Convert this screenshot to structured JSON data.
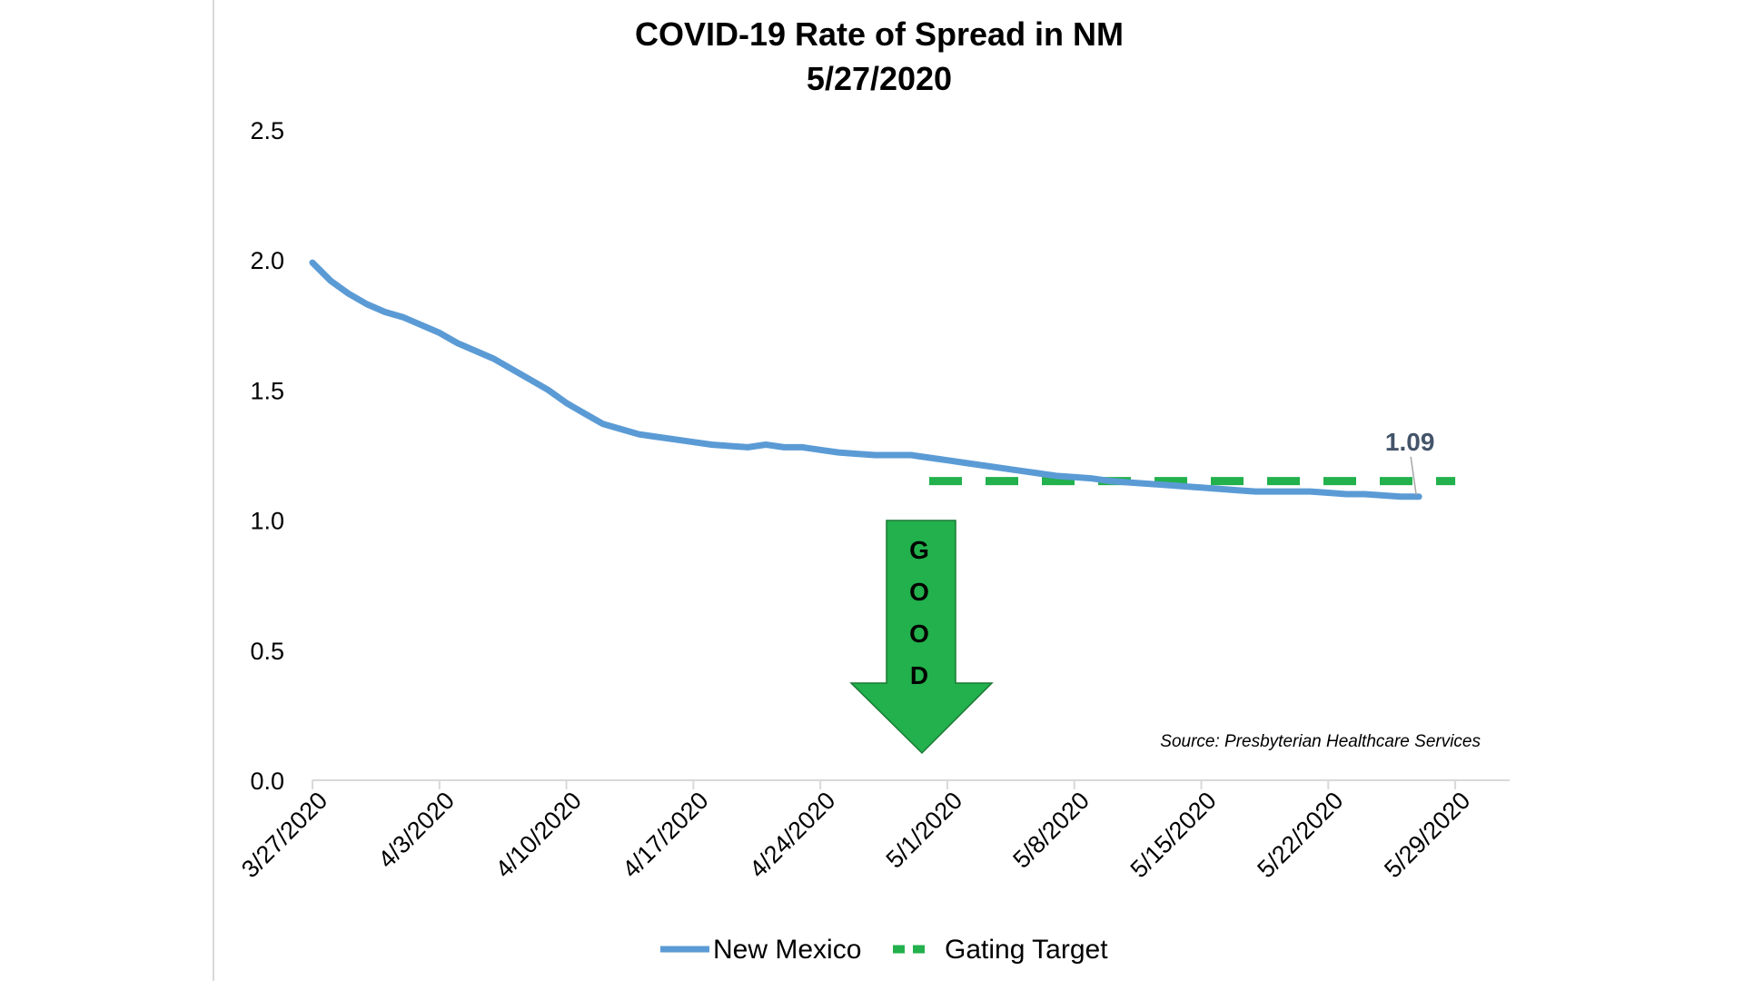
{
  "chart_data": {
    "type": "line",
    "title": "COVID-19 Rate of Spread in NM",
    "subtitle": "5/27/2020",
    "xlabel": "",
    "ylabel": "",
    "ylim": [
      0,
      2.5
    ],
    "yticks": [
      "0.0",
      "0.5",
      "1.0",
      "1.5",
      "2.0",
      "2.5"
    ],
    "xticks": [
      "3/27/2020",
      "4/3/2020",
      "4/10/2020",
      "4/17/2020",
      "4/24/2020",
      "5/1/2020",
      "5/8/2020",
      "5/15/2020",
      "5/22/2020",
      "5/29/2020"
    ],
    "xlim": [
      "2020-03-27",
      "2020-06-01"
    ],
    "grid": false,
    "legend_position": "bottom",
    "series": [
      {
        "name": "New Mexico",
        "color": "#5b9bd5",
        "style": "solid",
        "x": [
          "2020-03-27",
          "2020-03-28",
          "2020-03-29",
          "2020-03-30",
          "2020-03-31",
          "2020-04-01",
          "2020-04-02",
          "2020-04-03",
          "2020-04-04",
          "2020-04-05",
          "2020-04-06",
          "2020-04-07",
          "2020-04-08",
          "2020-04-09",
          "2020-04-10",
          "2020-04-11",
          "2020-04-12",
          "2020-04-13",
          "2020-04-14",
          "2020-04-15",
          "2020-04-16",
          "2020-04-17",
          "2020-04-18",
          "2020-04-19",
          "2020-04-20",
          "2020-04-21",
          "2020-04-22",
          "2020-04-23",
          "2020-04-24",
          "2020-04-25",
          "2020-04-26",
          "2020-04-27",
          "2020-04-28",
          "2020-04-29",
          "2020-04-30",
          "2020-05-01",
          "2020-05-02",
          "2020-05-03",
          "2020-05-04",
          "2020-05-05",
          "2020-05-06",
          "2020-05-07",
          "2020-05-08",
          "2020-05-09",
          "2020-05-10",
          "2020-05-11",
          "2020-05-12",
          "2020-05-13",
          "2020-05-14",
          "2020-05-15",
          "2020-05-16",
          "2020-05-17",
          "2020-05-18",
          "2020-05-19",
          "2020-05-20",
          "2020-05-21",
          "2020-05-22",
          "2020-05-23",
          "2020-05-24",
          "2020-05-25",
          "2020-05-26",
          "2020-05-27"
        ],
        "values": [
          1.99,
          1.92,
          1.87,
          1.83,
          1.8,
          1.78,
          1.75,
          1.72,
          1.68,
          1.65,
          1.62,
          1.58,
          1.54,
          1.5,
          1.45,
          1.41,
          1.37,
          1.35,
          1.33,
          1.32,
          1.31,
          1.3,
          1.29,
          1.285,
          1.28,
          1.29,
          1.28,
          1.28,
          1.27,
          1.26,
          1.255,
          1.25,
          1.25,
          1.25,
          1.24,
          1.23,
          1.22,
          1.21,
          1.2,
          1.19,
          1.18,
          1.17,
          1.165,
          1.16,
          1.15,
          1.145,
          1.14,
          1.135,
          1.13,
          1.125,
          1.12,
          1.115,
          1.11,
          1.11,
          1.11,
          1.11,
          1.105,
          1.1,
          1.1,
          1.095,
          1.09,
          1.09
        ]
      },
      {
        "name": "Gating Target",
        "color": "#22b14c",
        "style": "dashed",
        "x": [
          "2020-04-30",
          "2020-05-29"
        ],
        "values": [
          1.15,
          1.15
        ]
      }
    ],
    "annotations": {
      "last_value_label": "1.09",
      "last_value_label_color": "#44546a",
      "arrow_text": [
        "G",
        "O",
        "O",
        "D"
      ],
      "arrow_color": "#22b14c",
      "source": "Source: Presbyterian Healthcare Services"
    }
  }
}
